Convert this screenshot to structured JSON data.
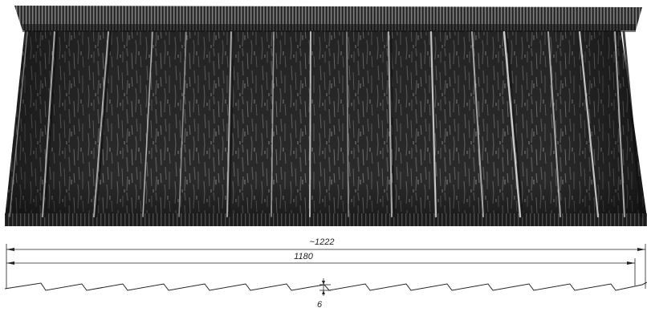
{
  "figure": {
    "subject": "roof-tile-panel",
    "colors": {
      "panel_base": "#2b2b2b",
      "panel_dark": "#111111",
      "panel_highlight": "#d9d9d9",
      "drawing_line": "#222222",
      "background": "#ffffff"
    }
  },
  "dimensions": {
    "overall_width": "~1222",
    "effective_width": "1180",
    "profile_depth": "6"
  }
}
